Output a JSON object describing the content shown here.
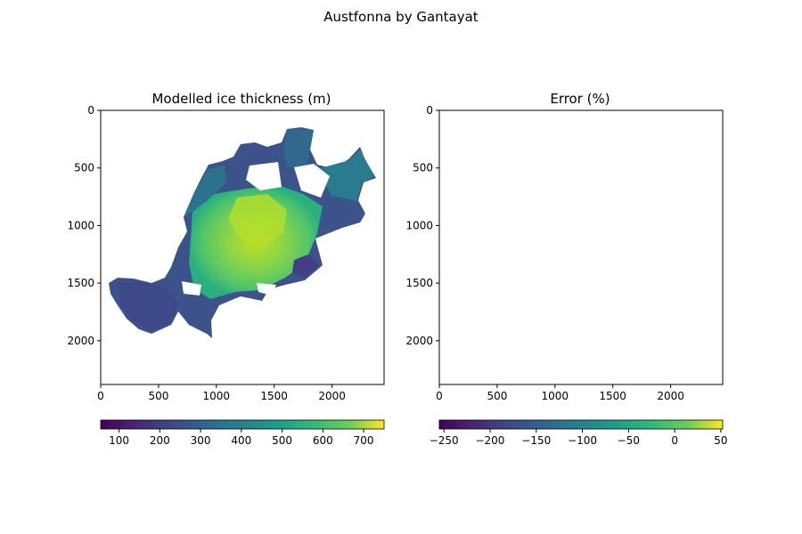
{
  "figure": {
    "title": "Austfonna by Gantayat"
  },
  "chart_data": [
    {
      "type": "heatmap",
      "title": "Modelled ice thickness (m)",
      "xlabel": "",
      "ylabel": "",
      "xlim": [
        0,
        2450
      ],
      "ylim": [
        2380,
        0
      ],
      "xticks": [
        0,
        500,
        1000,
        1500,
        2000
      ],
      "yticks": [
        0,
        500,
        1000,
        1500,
        2000
      ],
      "colormap": "viridis",
      "colorbar": {
        "orientation": "horizontal",
        "placement": "bottom",
        "range": [
          55,
          750
        ],
        "ticks": [
          100,
          200,
          300,
          400,
          500,
          600,
          700
        ]
      },
      "description_of_field": "ice-thickness map of Austfonna ice cap; thin margins (~100-300 m) grading to thick interior (~500-700 m)",
      "grid": false
    },
    {
      "type": "heatmap",
      "title": "Error (%)",
      "xlabel": "",
      "ylabel": "",
      "xlim": [
        0,
        2450
      ],
      "ylim": [
        2380,
        0
      ],
      "xticks": [
        0,
        500,
        1000,
        1500,
        2000
      ],
      "yticks": [
        0,
        500,
        1000,
        1500,
        2000
      ],
      "colormap": "viridis",
      "colorbar": {
        "orientation": "horizontal",
        "placement": "bottom",
        "range": [
          -255,
          52
        ],
        "ticks": [
          -250,
          -200,
          -150,
          -100,
          -50,
          0,
          50
        ]
      },
      "field": "empty",
      "grid": false
    }
  ]
}
